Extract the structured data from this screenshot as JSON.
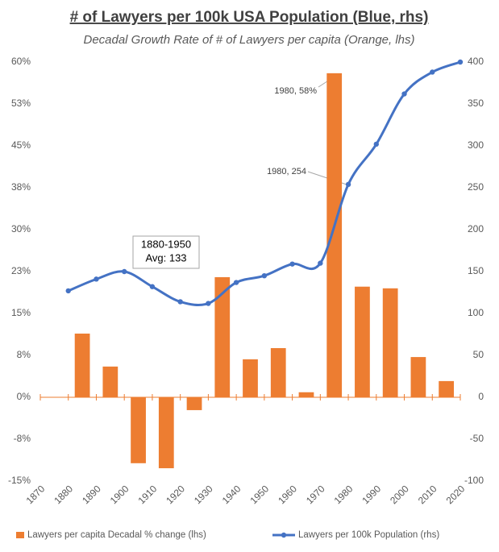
{
  "chart_data": {
    "type": "bar-line",
    "title": "# of Lawyers per 100k USA Population (Blue, rhs)",
    "subtitle": "Decadal Growth Rate of # of Lawyers per capita (Orange, lhs)",
    "categories": [
      "1870",
      "1880",
      "1890",
      "1900",
      "1910",
      "1920",
      "1930",
      "1940",
      "1950",
      "1960",
      "1970",
      "1980",
      "1990",
      "2000",
      "2010",
      "2020"
    ],
    "series": [
      {
        "name": "Lawyers per capita Decadal % change (lhs)",
        "type": "bar",
        "color": "#ed7d31",
        "values": [
          null,
          null,
          11.4,
          5.5,
          -11.8,
          -12.7,
          -2.3,
          21.5,
          6.8,
          8.8,
          0.9,
          58,
          19.8,
          19.5,
          7.2,
          2.9
        ]
      },
      {
        "name": "Lawyers per 100k Population (rhs)",
        "type": "line",
        "axis": "y2",
        "color": "#4472c4",
        "values": [
          null,
          127,
          141,
          150,
          132,
          114,
          112,
          137,
          145,
          159,
          160,
          254,
          302,
          362,
          388,
          400
        ]
      }
    ],
    "ylim": [
      -15,
      60
    ],
    "yticks": [
      {
        "value": -15,
        "label": "-15%"
      },
      {
        "value": -7.5,
        "label": "-8%"
      },
      {
        "value": 0,
        "label": "0%"
      },
      {
        "value": 7.5,
        "label": "8%"
      },
      {
        "value": 15,
        "label": "15%"
      },
      {
        "value": 22.5,
        "label": "23%"
      },
      {
        "value": 30,
        "label": "30%"
      },
      {
        "value": 37.5,
        "label": "38%"
      },
      {
        "value": 45,
        "label": "45%"
      },
      {
        "value": 52.5,
        "label": "53%"
      },
      {
        "value": 60,
        "label": "60%"
      }
    ],
    "y2lim": [
      -100,
      400
    ],
    "y2ticks": [
      -100,
      -50,
      0,
      50,
      100,
      150,
      200,
      250,
      300,
      350,
      400
    ],
    "annotations": [
      "1980, 58%",
      "1980, 254",
      "1880-1950",
      "Avg: 133"
    ]
  }
}
